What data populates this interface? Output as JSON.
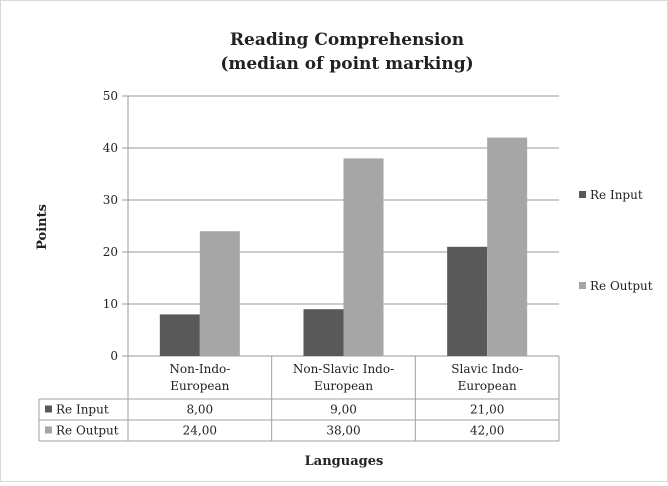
{
  "chart_data": {
    "type": "bar",
    "title": "Reading Comprehension",
    "subtitle": "(median of point marking)",
    "xlabel": "Languages",
    "ylabel": "Points",
    "ylim": [
      0,
      50
    ],
    "yticks": [
      "0",
      "10",
      "20",
      "30",
      "40",
      "50"
    ],
    "grid": true,
    "legend_position": "right",
    "categories": [
      [
        "Non-Indo-",
        "European"
      ],
      [
        "Non-Slavic Indo-",
        "European"
      ],
      [
        "Slavic Indo-",
        "European"
      ]
    ],
    "series": [
      {
        "name": "Re Input",
        "values": [
          8,
          9,
          21
        ],
        "labels": [
          "8,00",
          "9,00",
          "21,00"
        ],
        "color": "#595959"
      },
      {
        "name": "Re Output",
        "values": [
          24,
          38,
          42
        ],
        "labels": [
          "24,00",
          "38,00",
          "42,00"
        ],
        "color": "#a6a6a6"
      }
    ]
  }
}
